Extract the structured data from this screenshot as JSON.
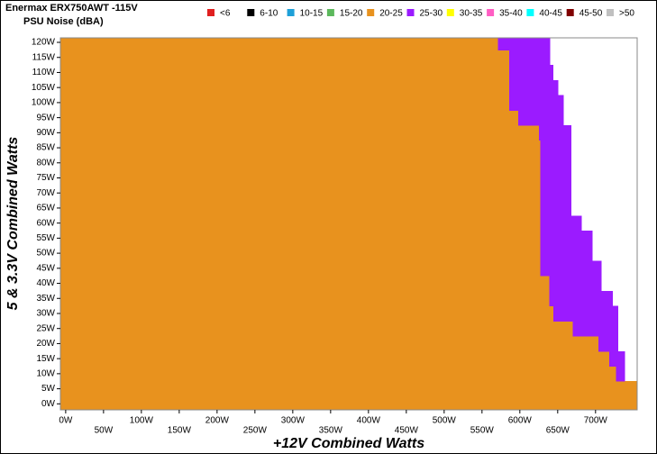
{
  "chart_data": {
    "type": "heatmap",
    "title": "Enermax ERX750AWT -115V",
    "subtitle": "PSU Noise (dBA)",
    "x_label": "+12V Combined Watts",
    "y_label": "5 & 3.3V Combined Watts",
    "xlim": [
      -7,
      755
    ],
    "ylim": [
      -2,
      121.5
    ],
    "xticks": [
      {
        "value": 0,
        "label": "0W"
      },
      {
        "value": 50,
        "label": "50W"
      },
      {
        "value": 100,
        "label": "100W"
      },
      {
        "value": 150,
        "label": "150W"
      },
      {
        "value": 200,
        "label": "200W"
      },
      {
        "value": 250,
        "label": "250W"
      },
      {
        "value": 300,
        "label": "300W"
      },
      {
        "value": 350,
        "label": "350W"
      },
      {
        "value": 400,
        "label": "400W"
      },
      {
        "value": 450,
        "label": "450W"
      },
      {
        "value": 500,
        "label": "500W"
      },
      {
        "value": 550,
        "label": "550W"
      },
      {
        "value": 600,
        "label": "600W"
      },
      {
        "value": 650,
        "label": "650W"
      },
      {
        "value": 700,
        "label": "700W"
      }
    ],
    "yticks": [
      {
        "value": 0,
        "label": "0W"
      },
      {
        "value": 5,
        "label": "5W"
      },
      {
        "value": 10,
        "label": "10W"
      },
      {
        "value": 15,
        "label": "15W"
      },
      {
        "value": 20,
        "label": "20W"
      },
      {
        "value": 25,
        "label": "25W"
      },
      {
        "value": 30,
        "label": "30W"
      },
      {
        "value": 35,
        "label": "35W"
      },
      {
        "value": 40,
        "label": "40W"
      },
      {
        "value": 45,
        "label": "45W"
      },
      {
        "value": 50,
        "label": "50W"
      },
      {
        "value": 55,
        "label": "55W"
      },
      {
        "value": 60,
        "label": "60W"
      },
      {
        "value": 65,
        "label": "65W"
      },
      {
        "value": 70,
        "label": "70W"
      },
      {
        "value": 75,
        "label": "75W"
      },
      {
        "value": 80,
        "label": "80W"
      },
      {
        "value": 85,
        "label": "85W"
      },
      {
        "value": 90,
        "label": "90W"
      },
      {
        "value": 95,
        "label": "95W"
      },
      {
        "value": 100,
        "label": "100W"
      },
      {
        "value": 105,
        "label": "105W"
      },
      {
        "value": 110,
        "label": "110W"
      },
      {
        "value": 115,
        "label": "115W"
      },
      {
        "value": 120,
        "label": "120W"
      }
    ],
    "y": [
      0,
      5,
      10,
      15,
      20,
      25,
      30,
      35,
      40,
      45,
      50,
      55,
      60,
      65,
      70,
      75,
      80,
      85,
      90,
      95,
      100,
      105,
      110,
      115,
      120
    ],
    "series": [
      {
        "name": "<6",
        "color": "#e02020"
      },
      {
        "name": "6-10",
        "color": "#000000"
      },
      {
        "name": "10-15",
        "color": "#1ea0d8"
      },
      {
        "name": "15-20",
        "color": "#5cb85c"
      },
      {
        "name": "20-25",
        "color": "#e8921e",
        "values": [
          755,
          755,
          727,
          718,
          704,
          670,
          644,
          639,
          639,
          627,
          627,
          627,
          627,
          627,
          627,
          627,
          627,
          627,
          625,
          598,
          586,
          586,
          586,
          586,
          571
        ]
      },
      {
        "name": "25-30",
        "color": "#9b1bff",
        "values": [
          755,
          755,
          739,
          739,
          730,
          730,
          730,
          723,
          708,
          708,
          696,
          696,
          682,
          668,
          668,
          668,
          668,
          668,
          668,
          658,
          658,
          651,
          644,
          640,
          640
        ]
      },
      {
        "name": "30-35",
        "color": "#ffff00"
      },
      {
        "name": "35-40",
        "color": "#ff5ec4"
      },
      {
        "name": "40-45",
        "color": "#00ffff"
      },
      {
        "name": "45-50",
        "color": "#800000"
      },
      {
        "name": ">50",
        "color": "#c0c0c0"
      }
    ]
  }
}
